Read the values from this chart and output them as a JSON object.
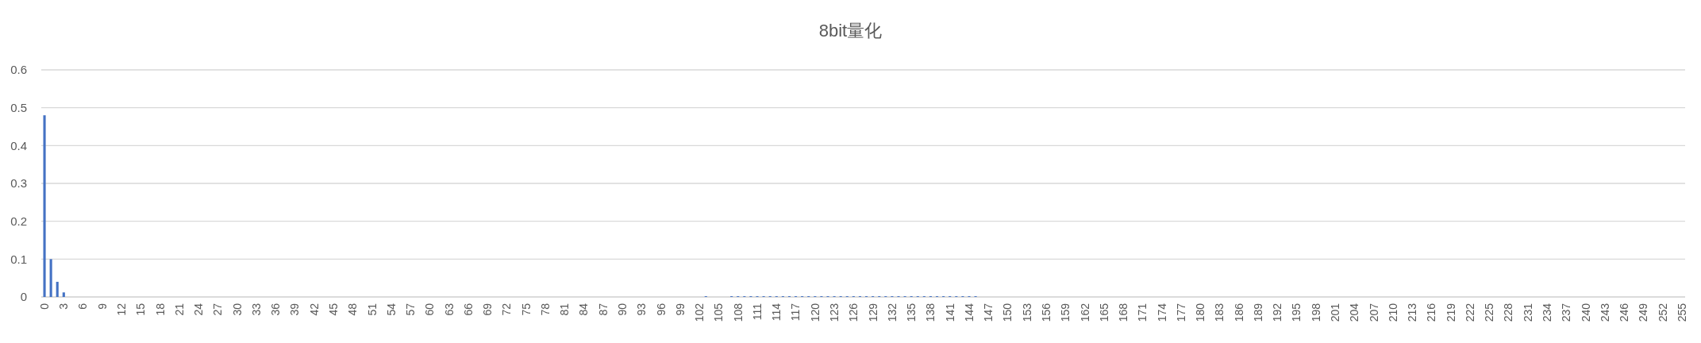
{
  "chart_data": {
    "type": "bar",
    "title": "8bit量化",
    "categories": [
      "0",
      null,
      null,
      "3",
      null,
      null,
      "6",
      null,
      null,
      "9",
      null,
      null,
      "12",
      null,
      null,
      "15",
      null,
      null,
      "18",
      null,
      null,
      "21",
      null,
      null,
      "24",
      null,
      null,
      "27",
      null,
      null,
      "30",
      null,
      null,
      "33",
      null,
      null,
      "36",
      null,
      null,
      "39",
      null,
      null,
      "42",
      null,
      null,
      "45",
      null,
      null,
      "48",
      null,
      null,
      "51",
      null,
      null,
      "54",
      null,
      null,
      "57",
      null,
      null,
      "60",
      null,
      null,
      "63",
      null,
      null,
      "66",
      null,
      null,
      "69",
      null,
      null,
      "72",
      null,
      null,
      "75",
      null,
      null,
      "78",
      null,
      null,
      "81",
      null,
      null,
      "84",
      null,
      null,
      "87",
      null,
      null,
      "90",
      null,
      null,
      "93",
      null,
      null,
      "96",
      null,
      null,
      "99",
      null,
      null,
      "102",
      null,
      null,
      "105",
      null,
      null,
      "108",
      null,
      null,
      "111",
      null,
      null,
      "114",
      null,
      null,
      "117",
      null,
      null,
      "120",
      null,
      null,
      "123",
      null,
      null,
      "126",
      null,
      null,
      "129",
      null,
      null,
      "132",
      null,
      null,
      "135",
      null,
      null,
      "138",
      null,
      null,
      "141",
      null,
      null,
      "144",
      null,
      null,
      "147",
      null,
      null,
      "150",
      null,
      null,
      "153",
      null,
      null,
      "156",
      null,
      null,
      "159",
      null,
      null,
      "162",
      null,
      null,
      "165",
      null,
      null,
      "168",
      null,
      null,
      "171",
      null,
      null,
      "174",
      null,
      null,
      "177",
      null,
      null,
      "180",
      null,
      null,
      "183",
      null,
      null,
      "186",
      null,
      null,
      "189",
      null,
      null,
      "192",
      null,
      null,
      "195",
      null,
      null,
      "198",
      null,
      null,
      "201",
      null,
      null,
      "204",
      null,
      null,
      "207",
      null,
      null,
      "210",
      null,
      null,
      "213",
      null,
      null,
      "216",
      null,
      null,
      "219",
      null,
      null,
      "222",
      null,
      null,
      "225",
      null,
      null,
      "228",
      null,
      null,
      "231",
      null,
      null,
      "234",
      null,
      null,
      "237",
      null,
      null,
      "240",
      null,
      null,
      "243",
      null,
      null,
      "246",
      null,
      null,
      "249",
      null,
      null,
      "252",
      null,
      null,
      "255"
    ],
    "values": [
      0.48,
      0.1,
      0.04,
      0.012,
      0,
      0,
      0,
      0,
      0,
      0,
      0,
      0,
      0,
      0,
      0,
      0,
      0,
      0,
      0,
      0,
      0,
      0,
      0,
      0,
      0,
      0,
      0,
      0,
      0,
      0,
      0,
      0,
      0,
      0,
      0,
      0,
      0,
      0,
      0,
      0,
      0,
      0,
      0,
      0,
      0,
      0,
      0,
      0,
      0,
      0,
      0,
      0,
      0,
      0,
      0,
      0,
      0,
      0,
      0,
      0,
      0,
      0,
      0,
      0,
      0,
      0,
      0,
      0,
      0,
      0,
      0,
      0,
      0,
      0,
      0,
      0,
      0,
      0,
      0,
      0,
      0,
      0,
      0,
      0,
      0,
      0,
      0,
      0,
      0,
      0,
      0,
      0,
      0,
      0,
      0,
      0,
      0,
      0,
      0,
      0,
      0,
      0,
      0,
      0.002,
      0,
      0,
      0,
      0.002,
      0.002,
      0.002,
      0.002,
      0.002,
      0.002,
      0.002,
      0.002,
      0.002,
      0.002,
      0.002,
      0.002,
      0.002,
      0.002,
      0.002,
      0.002,
      0.002,
      0.002,
      0.002,
      0.002,
      0.002,
      0.002,
      0.002,
      0.002,
      0.002,
      0.002,
      0.002,
      0.002,
      0.002,
      0.002,
      0.002,
      0.002,
      0.002,
      0.002,
      0.002,
      0.002,
      0.002,
      0.002,
      0.002,
      0,
      0,
      0,
      0,
      0,
      0,
      0,
      0,
      0,
      0,
      0,
      0,
      0,
      0,
      0,
      0,
      0,
      0,
      0,
      0,
      0,
      0,
      0,
      0,
      0,
      0,
      0,
      0,
      0,
      0,
      0,
      0,
      0,
      0,
      0,
      0,
      0,
      0,
      0,
      0,
      0,
      0,
      0,
      0,
      0,
      0,
      0,
      0,
      0,
      0,
      0,
      0,
      0,
      0,
      0,
      0,
      0,
      0,
      0,
      0,
      0,
      0,
      0,
      0,
      0,
      0,
      0,
      0,
      0,
      0,
      0,
      0,
      0,
      0,
      0,
      0,
      0,
      0,
      0,
      0,
      0,
      0,
      0,
      0,
      0,
      0,
      0,
      0,
      0,
      0,
      0,
      0,
      0,
      0,
      0,
      0,
      0,
      0,
      0,
      0,
      0,
      0,
      0,
      0,
      0,
      0,
      0,
      0,
      0,
      0
    ],
    "color": "#4472c4",
    "ylim": [
      0,
      0.6
    ],
    "yticks": [
      0,
      0.1,
      0.2,
      0.3,
      0.4,
      0.5,
      0.6
    ],
    "grid": "y"
  }
}
